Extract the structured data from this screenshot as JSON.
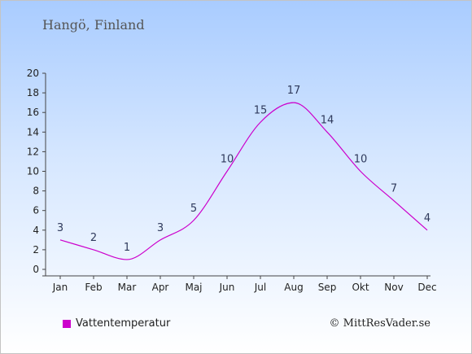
{
  "chart_data": {
    "type": "line",
    "title": "Hangö, Finland",
    "categories": [
      "Jan",
      "Feb",
      "Mar",
      "Apr",
      "Maj",
      "Jun",
      "Jul",
      "Aug",
      "Sep",
      "Okt",
      "Nov",
      "Dec"
    ],
    "series": [
      {
        "name": "Vattentemperatur",
        "values": [
          3,
          2,
          1,
          3,
          5,
          10,
          15,
          17,
          14,
          10,
          7,
          4
        ],
        "color": "#cc00cc"
      }
    ],
    "ylim": [
      0,
      20
    ],
    "yticks": [
      0,
      2,
      4,
      6,
      8,
      10,
      12,
      14,
      16,
      18,
      20
    ],
    "xlabel": "",
    "ylabel": "",
    "grid": false,
    "legend": "bottom-left"
  },
  "footer": {
    "copyright": "© MittResVader.se"
  }
}
